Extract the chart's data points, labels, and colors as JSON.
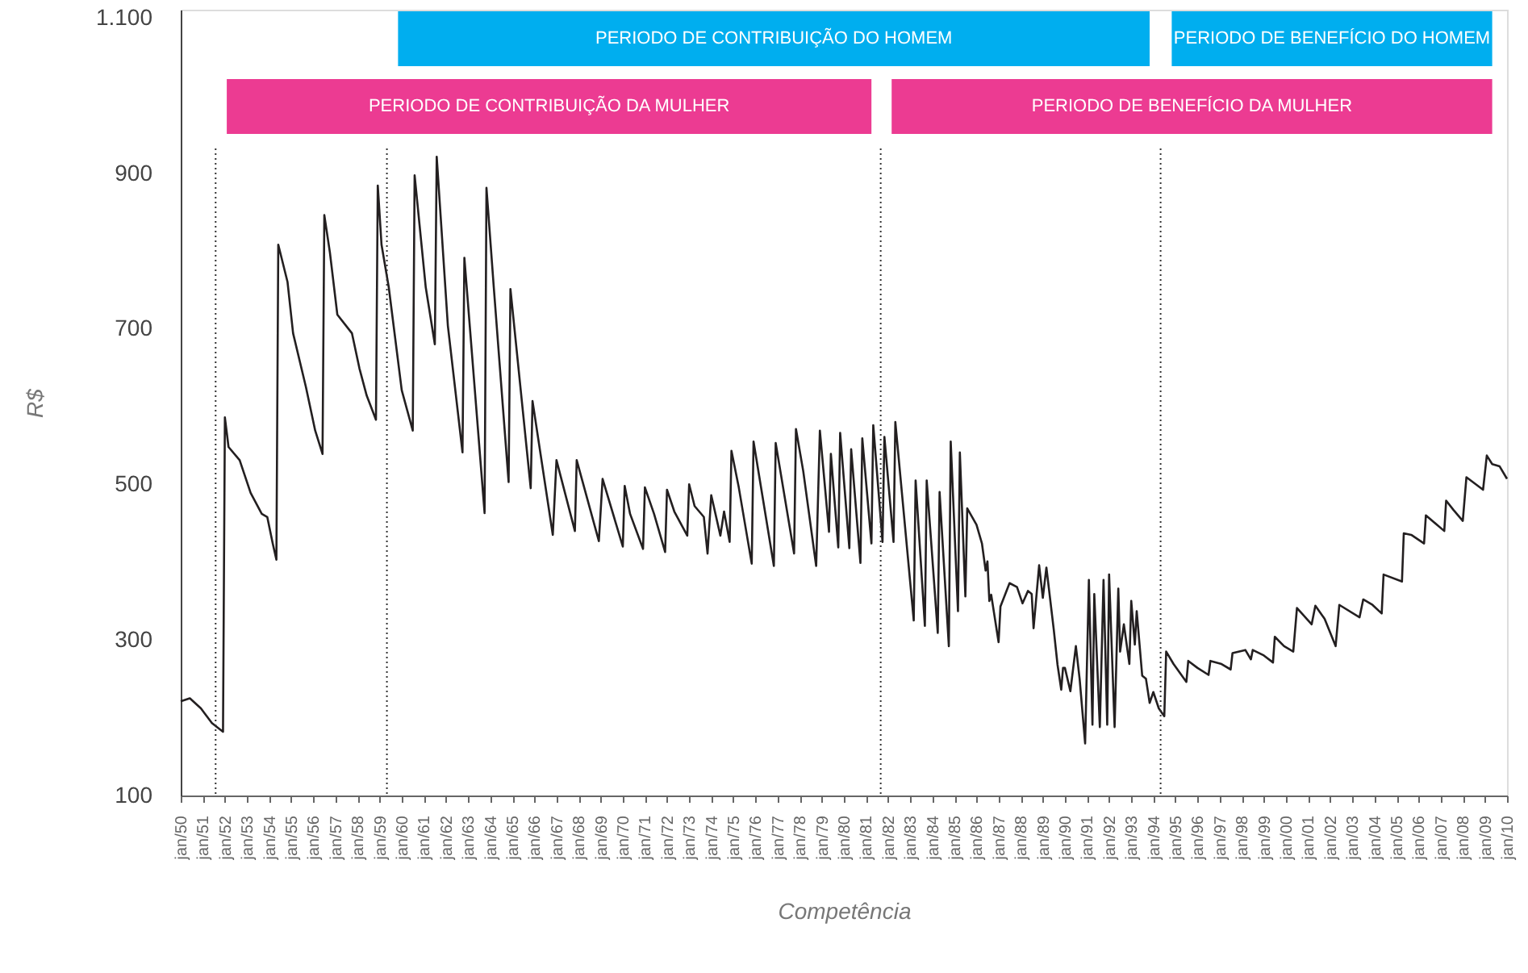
{
  "chart_data": {
    "type": "line",
    "xlabel": "Competência",
    "ylabel": "R$",
    "x": [
      "1950-01",
      "1950-06",
      "1950-12",
      "1951-06",
      "1951-12",
      "1952-01",
      "1952-03",
      "1952-09",
      "1953-03",
      "1953-09",
      "1953-12",
      "1954-03",
      "1954-05",
      "1954-06",
      "1954-11",
      "1955-02",
      "1955-09",
      "1956-02",
      "1956-06",
      "1956-07",
      "1956-10",
      "1957-02",
      "1957-10",
      "1958-02",
      "1958-06",
      "1958-11",
      "1958-12",
      "1959-02",
      "1959-06",
      "1960-01",
      "1960-07",
      "1960-08",
      "1961-02",
      "1961-07",
      "1961-08",
      "1962-02",
      "1962-10",
      "1962-11",
      "1963-10",
      "1963-11",
      "1964-03",
      "1964-11",
      "1964-12",
      "1965-11",
      "1965-12",
      "1966-11",
      "1967-01",
      "1967-11",
      "1967-12",
      "1968-12",
      "1969-02",
      "1970-01",
      "1970-02",
      "1970-05",
      "1970-12",
      "1971-01",
      "1971-06",
      "1971-12",
      "1972-01",
      "1972-05",
      "1972-12",
      "1973-01",
      "1973-04",
      "1973-09",
      "1973-11",
      "1974-01",
      "1974-06",
      "1974-08",
      "1974-11",
      "1974-12",
      "1975-04",
      "1975-11",
      "1975-12",
      "1976-11",
      "1976-12",
      "1977-10",
      "1977-11",
      "1978-03",
      "1978-10",
      "1978-12",
      "1979-05",
      "1979-06",
      "1979-10",
      "1979-11",
      "1980-04",
      "1980-05",
      "1980-10",
      "1980-11",
      "1981-04",
      "1981-05",
      "1981-10",
      "1981-11",
      "1982-04",
      "1982-05",
      "1983-03",
      "1983-04",
      "1983-09",
      "1983-10",
      "1984-04",
      "1984-05",
      "1984-10",
      "1984-11",
      "1985-03",
      "1985-04",
      "1985-07",
      "1985-08",
      "1986-01",
      "1986-04",
      "1986-06",
      "1986-07",
      "1986-08",
      "1986-09",
      "1987-01",
      "1987-02",
      "1987-07",
      "1987-11",
      "1988-02",
      "1988-05",
      "1988-07",
      "1988-08",
      "1988-11",
      "1989-01",
      "1989-03",
      "1989-07",
      "1989-09",
      "1989-11",
      "1989-12",
      "1990-01",
      "1990-04",
      "1990-07",
      "1990-09",
      "1990-12",
      "1991-02",
      "1991-04",
      "1991-05",
      "1991-08",
      "1991-10",
      "1991-12",
      "1992-01",
      "1992-04",
      "1992-06",
      "1992-07",
      "1992-09",
      "1992-12",
      "1993-01",
      "1993-03",
      "1993-04",
      "1993-07",
      "1993-09",
      "1993-11",
      "1994-01",
      "1994-04",
      "1994-07",
      "1994-08",
      "1994-12",
      "1995-07",
      "1995-08",
      "1996-01",
      "1996-07",
      "1996-08",
      "1997-02",
      "1997-07",
      "1997-08",
      "1998-03",
      "1998-06",
      "1998-07",
      "1999-01",
      "1999-06",
      "1999-07",
      "1999-12",
      "2000-05",
      "2000-07",
      "2001-03",
      "2001-05",
      "2001-10",
      "2002-04",
      "2002-06",
      "2003-05",
      "2003-07",
      "2003-12",
      "2004-05",
      "2004-06",
      "2005-04",
      "2005-05",
      "2005-09",
      "2006-04",
      "2006-05",
      "2007-03",
      "2007-04",
      "2007-08",
      "2008-01",
      "2008-03",
      "2008-12",
      "2009-02",
      "2009-05",
      "2009-09",
      "2010-01"
    ],
    "series": [
      {
        "color": "#231f20",
        "values": [
          221,
          225,
          212,
          193,
          182,
          586,
          548,
          531,
          489,
          462,
          458,
          424,
          403,
          808,
          760,
          694,
          625,
          569,
          539,
          846,
          798,
          718,
          694,
          649,
          614,
          583,
          884,
          808,
          753,
          621,
          569,
          897,
          753,
          680,
          921,
          704,
          541,
          791,
          463,
          881,
          753,
          503,
          751,
          495,
          607,
          435,
          531,
          440,
          531,
          427,
          507,
          420,
          498,
          462,
          417,
          496,
          462,
          413,
          493,
          465,
          434,
          500,
          472,
          458,
          411,
          486,
          434,
          465,
          426,
          543,
          496,
          398,
          555,
          395,
          553,
          411,
          571,
          517,
          395,
          569,
          439,
          539,
          419,
          566,
          418,
          545,
          399,
          559,
          424,
          576,
          426,
          561,
          426,
          580,
          325,
          505,
          318,
          505,
          309,
          490,
          292,
          555,
          337,
          541,
          356,
          469,
          448,
          424,
          389,
          401,
          350,
          358,
          297,
          343,
          373,
          368,
          347,
          363,
          359,
          315,
          396,
          354,
          393,
          313,
          268,
          236,
          264,
          264,
          234,
          292,
          250,
          167,
          377,
          191,
          359,
          188,
          377,
          191,
          384,
          188,
          366,
          285,
          320,
          269,
          350,
          294,
          337,
          254,
          250,
          219,
          233,
          212,
          202,
          285,
          269,
          246,
          273,
          264,
          255,
          273,
          269,
          262,
          283,
          287,
          275,
          287,
          280,
          271,
          304,
          292,
          285,
          341,
          320,
          344,
          327,
          292,
          345,
          329,
          352,
          345,
          334,
          384,
          375,
          437,
          435,
          424,
          460,
          440,
          479,
          467,
          453,
          509,
          493,
          537,
          526,
          523,
          507
        ]
      }
    ],
    "xlim": [
      "1950-01",
      "2010-01"
    ],
    "xticks": [
      {
        "value": "1950-01",
        "label": "jan/50"
      },
      {
        "value": "1951-01",
        "label": "jan/51"
      },
      {
        "value": "1952-01",
        "label": "jan/52"
      },
      {
        "value": "1953-01",
        "label": "jan/53"
      },
      {
        "value": "1954-01",
        "label": "jan/54"
      },
      {
        "value": "1955-01",
        "label": "jan/55"
      },
      {
        "value": "1956-01",
        "label": "jan/56"
      },
      {
        "value": "1957-01",
        "label": "jan/57"
      },
      {
        "value": "1958-01",
        "label": "jan/58"
      },
      {
        "value": "1959-01",
        "label": "jan/59"
      },
      {
        "value": "1960-01",
        "label": "jan/60"
      },
      {
        "value": "1961-01",
        "label": "jan/61"
      },
      {
        "value": "1962-01",
        "label": "jan/62"
      },
      {
        "value": "1963-01",
        "label": "jan/63"
      },
      {
        "value": "1964-01",
        "label": "jan/64"
      },
      {
        "value": "1965-01",
        "label": "jan/65"
      },
      {
        "value": "1966-01",
        "label": "jan/66"
      },
      {
        "value": "1967-01",
        "label": "jan/67"
      },
      {
        "value": "1968-01",
        "label": "jan/68"
      },
      {
        "value": "1969-01",
        "label": "jan/69"
      },
      {
        "value": "1970-01",
        "label": "jan/70"
      },
      {
        "value": "1971-01",
        "label": "jan/71"
      },
      {
        "value": "1972-01",
        "label": "jan/72"
      },
      {
        "value": "1973-01",
        "label": "jan/73"
      },
      {
        "value": "1974-01",
        "label": "jan/74"
      },
      {
        "value": "1975-01",
        "label": "jan/75"
      },
      {
        "value": "1976-01",
        "label": "jan/76"
      },
      {
        "value": "1977-01",
        "label": "jan/77"
      },
      {
        "value": "1978-01",
        "label": "jan/78"
      },
      {
        "value": "1979-01",
        "label": "jan/79"
      },
      {
        "value": "1980-01",
        "label": "jan/80"
      },
      {
        "value": "1981-01",
        "label": "jan/81"
      },
      {
        "value": "1982-01",
        "label": "jan/82"
      },
      {
        "value": "1983-01",
        "label": "jan/83"
      },
      {
        "value": "1984-01",
        "label": "jan/84"
      },
      {
        "value": "1985-01",
        "label": "jan/85"
      },
      {
        "value": "1986-01",
        "label": "jan/86"
      },
      {
        "value": "1987-01",
        "label": "jan/87"
      },
      {
        "value": "1988-01",
        "label": "jan/88"
      },
      {
        "value": "1989-01",
        "label": "jan/89"
      },
      {
        "value": "1990-01",
        "label": "jan/90"
      },
      {
        "value": "1991-01",
        "label": "jan/91"
      },
      {
        "value": "1992-01",
        "label": "jan/92"
      },
      {
        "value": "1993-01",
        "label": "jan/93"
      },
      {
        "value": "1994-01",
        "label": "jan/94"
      },
      {
        "value": "1995-01",
        "label": "jan/95"
      },
      {
        "value": "1996-01",
        "label": "jan/96"
      },
      {
        "value": "1997-01",
        "label": "jan/97"
      },
      {
        "value": "1998-01",
        "label": "jan/98"
      },
      {
        "value": "1999-01",
        "label": "jan/99"
      },
      {
        "value": "2000-01",
        "label": "jan/00"
      },
      {
        "value": "2001-01",
        "label": "jan/01"
      },
      {
        "value": "2002-01",
        "label": "jan/02"
      },
      {
        "value": "2003-01",
        "label": "jan/03"
      },
      {
        "value": "2004-01",
        "label": "jan/04"
      },
      {
        "value": "2005-01",
        "label": "jan/05"
      },
      {
        "value": "2006-01",
        "label": "jan/06"
      },
      {
        "value": "2007-01",
        "label": "jan/07"
      },
      {
        "value": "2008-01",
        "label": "jan/08"
      },
      {
        "value": "2009-01",
        "label": "jan/09"
      },
      {
        "value": "2010-01",
        "label": "jan/10"
      }
    ],
    "ylim": [
      100,
      1110
    ],
    "yticks": [
      100,
      300,
      500,
      700,
      900,
      {
        "value": 1100,
        "label": "1.100"
      }
    ],
    "ref_lines": [
      {
        "axis": "x",
        "value": "1951-08",
        "color": "#333333",
        "line_style": "dotted"
      },
      {
        "axis": "x",
        "value": "1959-05",
        "color": "#333333",
        "line_style": "dotted"
      },
      {
        "axis": "x",
        "value": "1981-09",
        "color": "#333333",
        "line_style": "dotted"
      },
      {
        "axis": "x",
        "value": "1994-05",
        "color": "#333333",
        "line_style": "dotted"
      }
    ],
    "bands": [
      {
        "axis": "x",
        "from": "1959-11",
        "to": "1993-11",
        "label": "PERIODO DE CONTRIBUIÇÃO DO HOMEM",
        "color": "#00aeef"
      },
      {
        "axis": "x",
        "from": "1994-11",
        "to": "2009-05",
        "label": "PERIODO DE BENEFÍCIO DO HOMEM",
        "color": "#00aeef"
      },
      {
        "axis": "x",
        "from": "1952-02",
        "to": "1981-04",
        "label": "PERIODO DE CONTRIBUIÇÃO DA MULHER",
        "color": "#ec3b92"
      },
      {
        "axis": "x",
        "from": "1982-03",
        "to": "2009-05",
        "label": "PERIODO DE BENEFÍCIO DA MULHER",
        "color": "#ec3b92"
      }
    ]
  }
}
